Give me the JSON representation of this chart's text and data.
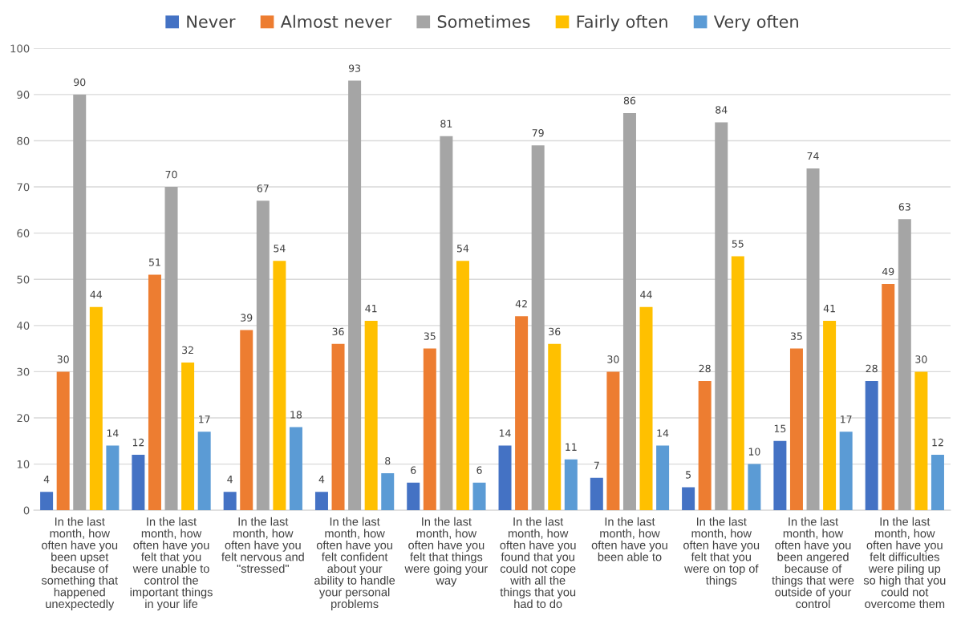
{
  "chart_data": {
    "type": "bar",
    "categories": [
      "In the last month, how often have you been upset because of something that happened unexpectedly",
      "In the last month, how often have you felt that you were unable to control the important things in your life",
      "In the last month, how often have you felt nervous and \"stressed\"",
      "In the last month, how often have you felt confident about your ability to handle your personal problems",
      "In the last month, how often have you felt that things were going your way",
      "In the last month, how often have you found that you could not cope with all the things that you had to do",
      "In the last month, how often have you been able to",
      "In the last month, how often have you felt that you were on top of things",
      "In the last month, how often have you been angered because of things that were outside of your control",
      "In the last month, how often have you felt difficulties were piling up so high that you could not overcome them"
    ],
    "series": [
      {
        "name": "Never",
        "color": "#4472c4",
        "values": [
          4,
          12,
          4,
          4,
          6,
          14,
          7,
          5,
          15,
          28
        ]
      },
      {
        "name": "Almost never",
        "color": "#ed7d31",
        "values": [
          30,
          51,
          39,
          36,
          35,
          42,
          30,
          28,
          35,
          49
        ]
      },
      {
        "name": "Sometimes",
        "color": "#a5a5a5",
        "values": [
          90,
          70,
          67,
          93,
          81,
          79,
          86,
          84,
          74,
          63
        ]
      },
      {
        "name": "Fairly often",
        "color": "#ffc000",
        "values": [
          44,
          32,
          54,
          41,
          54,
          36,
          44,
          55,
          41,
          30
        ]
      },
      {
        "name": "Very often",
        "color": "#5b9bd5",
        "values": [
          14,
          17,
          18,
          8,
          6,
          11,
          14,
          10,
          17,
          12
        ]
      }
    ],
    "ylim": [
      0,
      100
    ],
    "yticks": [
      0,
      10,
      20,
      30,
      40,
      50,
      60,
      70,
      80,
      90,
      100
    ],
    "grid": "y",
    "legend": "top",
    "data_labels": true
  }
}
